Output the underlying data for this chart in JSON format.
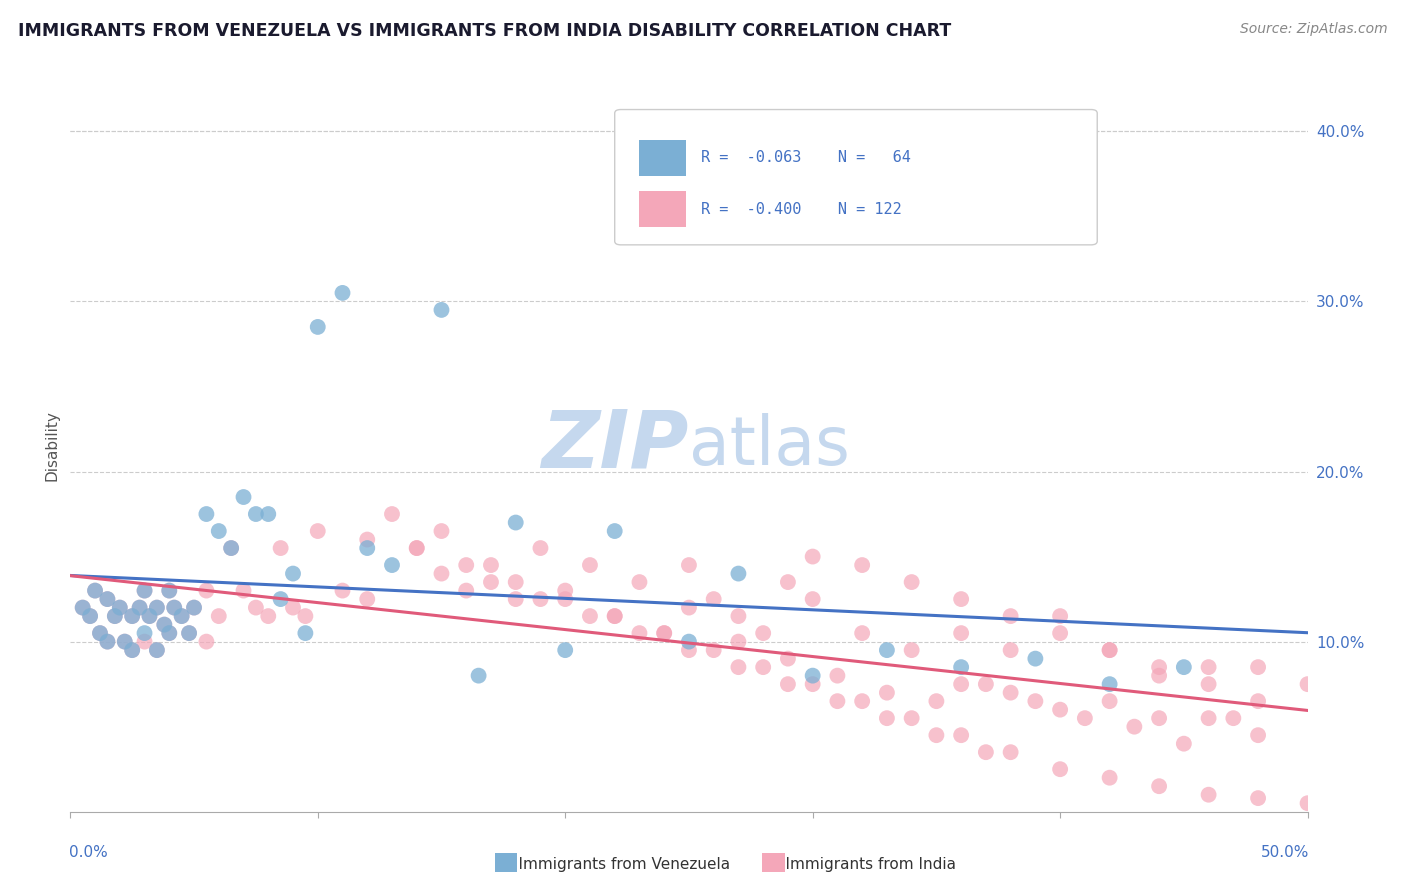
{
  "title": "IMMIGRANTS FROM VENEZUELA VS IMMIGRANTS FROM INDIA DISABILITY CORRELATION CHART",
  "source": "Source: ZipAtlas.com",
  "ylabel": "Disability",
  "y_ticks": [
    0.1,
    0.2,
    0.3,
    0.4
  ],
  "y_tick_labels": [
    "10.0%",
    "20.0%",
    "30.0%",
    "40.0%"
  ],
  "x_range": [
    0.0,
    0.5
  ],
  "y_range": [
    0.0,
    0.43
  ],
  "color_venezuela": "#7bafd4",
  "color_india": "#f4a7b9",
  "color_trend_venezuela": "#4472c4",
  "color_trend_india": "#e05a7a",
  "watermark_zip": "ZIP",
  "watermark_atlas": "atlas",
  "watermark_color_zip": "#c5d8ee",
  "watermark_color_atlas": "#c5d8ee",
  "venezuela_x": [
    0.005,
    0.008,
    0.01,
    0.012,
    0.015,
    0.015,
    0.018,
    0.02,
    0.022,
    0.025,
    0.025,
    0.028,
    0.03,
    0.03,
    0.032,
    0.035,
    0.035,
    0.038,
    0.04,
    0.04,
    0.042,
    0.045,
    0.048,
    0.05,
    0.055,
    0.06,
    0.065,
    0.07,
    0.075,
    0.08,
    0.085,
    0.09,
    0.095,
    0.1,
    0.11,
    0.12,
    0.13,
    0.15,
    0.165,
    0.18,
    0.2,
    0.22,
    0.25,
    0.27,
    0.3,
    0.33,
    0.36,
    0.39,
    0.42,
    0.45
  ],
  "venezuela_y": [
    0.12,
    0.115,
    0.13,
    0.105,
    0.125,
    0.1,
    0.115,
    0.12,
    0.1,
    0.115,
    0.095,
    0.12,
    0.13,
    0.105,
    0.115,
    0.12,
    0.095,
    0.11,
    0.13,
    0.105,
    0.12,
    0.115,
    0.105,
    0.12,
    0.175,
    0.165,
    0.155,
    0.185,
    0.175,
    0.175,
    0.125,
    0.14,
    0.105,
    0.285,
    0.305,
    0.155,
    0.145,
    0.295,
    0.08,
    0.17,
    0.095,
    0.165,
    0.1,
    0.14,
    0.08,
    0.095,
    0.085,
    0.09,
    0.075,
    0.085
  ],
  "india_x": [
    0.005,
    0.008,
    0.01,
    0.012,
    0.015,
    0.015,
    0.018,
    0.02,
    0.022,
    0.025,
    0.025,
    0.028,
    0.03,
    0.03,
    0.032,
    0.035,
    0.035,
    0.038,
    0.04,
    0.04,
    0.042,
    0.045,
    0.048,
    0.05,
    0.055,
    0.055,
    0.06,
    0.065,
    0.07,
    0.075,
    0.08,
    0.085,
    0.09,
    0.095,
    0.1,
    0.11,
    0.12,
    0.13,
    0.14,
    0.15,
    0.16,
    0.17,
    0.18,
    0.19,
    0.2,
    0.21,
    0.22,
    0.23,
    0.24,
    0.25,
    0.26,
    0.27,
    0.28,
    0.29,
    0.3,
    0.32,
    0.34,
    0.36,
    0.38,
    0.4,
    0.42,
    0.44,
    0.46,
    0.48,
    0.5,
    0.36,
    0.38,
    0.4,
    0.42,
    0.44,
    0.46,
    0.48,
    0.25,
    0.27,
    0.29,
    0.31,
    0.33,
    0.35,
    0.37,
    0.39,
    0.41,
    0.43,
    0.45,
    0.47,
    0.3,
    0.32,
    0.34,
    0.36,
    0.38,
    0.4,
    0.42,
    0.44,
    0.46,
    0.48,
    0.15,
    0.17,
    0.19,
    0.21,
    0.23,
    0.25,
    0.27,
    0.29,
    0.31,
    0.33,
    0.35,
    0.37,
    0.12,
    0.14,
    0.16,
    0.18,
    0.2,
    0.22,
    0.24,
    0.26,
    0.28,
    0.3,
    0.32,
    0.34,
    0.36,
    0.38,
    0.4,
    0.42,
    0.44,
    0.46,
    0.48,
    0.5
  ],
  "india_y": [
    0.12,
    0.115,
    0.13,
    0.105,
    0.125,
    0.1,
    0.115,
    0.12,
    0.1,
    0.115,
    0.095,
    0.12,
    0.13,
    0.1,
    0.115,
    0.12,
    0.095,
    0.11,
    0.13,
    0.105,
    0.12,
    0.115,
    0.105,
    0.12,
    0.13,
    0.1,
    0.115,
    0.155,
    0.13,
    0.12,
    0.115,
    0.155,
    0.12,
    0.115,
    0.165,
    0.13,
    0.125,
    0.175,
    0.155,
    0.165,
    0.13,
    0.145,
    0.125,
    0.155,
    0.13,
    0.145,
    0.115,
    0.135,
    0.105,
    0.145,
    0.125,
    0.115,
    0.105,
    0.135,
    0.125,
    0.105,
    0.095,
    0.105,
    0.095,
    0.115,
    0.095,
    0.08,
    0.085,
    0.085,
    0.075,
    0.075,
    0.07,
    0.06,
    0.065,
    0.055,
    0.055,
    0.045,
    0.12,
    0.1,
    0.09,
    0.08,
    0.07,
    0.065,
    0.075,
    0.065,
    0.055,
    0.05,
    0.04,
    0.055,
    0.15,
    0.145,
    0.135,
    0.125,
    0.115,
    0.105,
    0.095,
    0.085,
    0.075,
    0.065,
    0.14,
    0.135,
    0.125,
    0.115,
    0.105,
    0.095,
    0.085,
    0.075,
    0.065,
    0.055,
    0.045,
    0.035,
    0.16,
    0.155,
    0.145,
    0.135,
    0.125,
    0.115,
    0.105,
    0.095,
    0.085,
    0.075,
    0.065,
    0.055,
    0.045,
    0.035,
    0.025,
    0.02,
    0.015,
    0.01,
    0.008,
    0.005
  ]
}
